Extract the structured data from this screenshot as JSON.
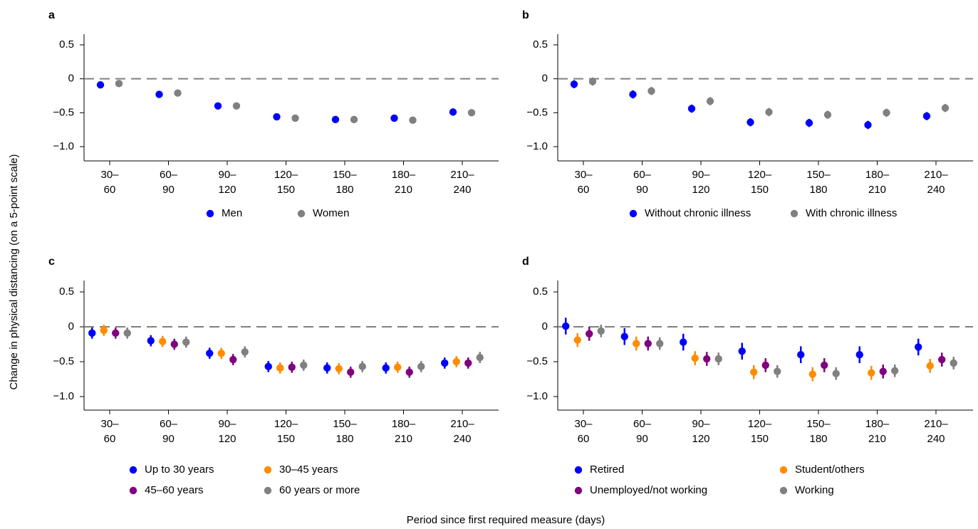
{
  "figure": {
    "ylabel": "Change in physical distancing (on a 5-point scale)",
    "xlabel": "Period since first required measure (days)"
  },
  "chart_data": [
    {
      "panel": "a",
      "type": "scatter",
      "categories": [
        [
          "30–",
          "60"
        ],
        [
          "60–",
          "90"
        ],
        [
          "90–",
          "120"
        ],
        [
          "120–",
          "150"
        ],
        [
          "150–",
          "180"
        ],
        [
          "180–",
          "210"
        ],
        [
          "210–",
          "240"
        ]
      ],
      "yticks": [
        "0.5",
        "0",
        "−0.5",
        "−1.0"
      ],
      "ylim": [
        -1.0,
        0.5
      ],
      "reference_line": 0,
      "legend_columns": 2,
      "series": [
        {
          "name": "Men",
          "color": "#0000ff",
          "values": [
            -0.09,
            -0.23,
            -0.4,
            -0.56,
            -0.6,
            -0.58,
            -0.49
          ],
          "ci": [
            0.05,
            0.05,
            0.05,
            0.05,
            0.05,
            0.05,
            0.05
          ]
        },
        {
          "name": "Women",
          "color": "#808080",
          "values": [
            -0.07,
            -0.21,
            -0.4,
            -0.58,
            -0.6,
            -0.61,
            -0.5
          ],
          "ci": [
            0.05,
            0.05,
            0.05,
            0.05,
            0.05,
            0.05,
            0.05
          ]
        }
      ]
    },
    {
      "panel": "b",
      "type": "scatter",
      "categories": [
        [
          "30–",
          "60"
        ],
        [
          "60–",
          "90"
        ],
        [
          "90–",
          "120"
        ],
        [
          "120–",
          "150"
        ],
        [
          "150–",
          "180"
        ],
        [
          "180–",
          "210"
        ],
        [
          "210–",
          "240"
        ]
      ],
      "yticks": [
        "0.5",
        "0",
        "−0.5",
        "−1.0"
      ],
      "ylim": [
        -1.0,
        0.5
      ],
      "reference_line": 0,
      "legend_columns": 2,
      "series": [
        {
          "name": "Without chronic illness",
          "color": "#0000ff",
          "values": [
            -0.08,
            -0.23,
            -0.44,
            -0.64,
            -0.65,
            -0.68,
            -0.55
          ],
          "ci": [
            0.06,
            0.06,
            0.06,
            0.06,
            0.06,
            0.06,
            0.06
          ]
        },
        {
          "name": "With chronic illness",
          "color": "#808080",
          "values": [
            -0.04,
            -0.18,
            -0.33,
            -0.49,
            -0.53,
            -0.5,
            -0.43
          ],
          "ci": [
            0.06,
            0.06,
            0.06,
            0.06,
            0.06,
            0.06,
            0.06
          ]
        }
      ]
    },
    {
      "panel": "c",
      "type": "scatter",
      "categories": [
        [
          "30–",
          "60"
        ],
        [
          "60–",
          "90"
        ],
        [
          "90–",
          "120"
        ],
        [
          "120–",
          "150"
        ],
        [
          "150–",
          "180"
        ],
        [
          "180–",
          "210"
        ],
        [
          "210–",
          "240"
        ]
      ],
      "yticks": [
        "0.5",
        "0",
        "−0.5",
        "−1.0"
      ],
      "ylim": [
        -1.0,
        0.5
      ],
      "reference_line": 0,
      "legend_columns": 2,
      "series": [
        {
          "name": "Up to 30 years",
          "color": "#0000ff",
          "values": [
            -0.09,
            -0.2,
            -0.38,
            -0.57,
            -0.59,
            -0.59,
            -0.52
          ],
          "ci": [
            0.08,
            0.08,
            0.08,
            0.08,
            0.08,
            0.08,
            0.08
          ]
        },
        {
          "name": "30–45 years",
          "color": "#ff8c00",
          "values": [
            -0.05,
            -0.21,
            -0.38,
            -0.59,
            -0.6,
            -0.58,
            -0.5
          ],
          "ci": [
            0.08,
            0.08,
            0.08,
            0.08,
            0.08,
            0.08,
            0.08
          ]
        },
        {
          "name": "45–60 years",
          "color": "#800080",
          "values": [
            -0.09,
            -0.25,
            -0.47,
            -0.58,
            -0.65,
            -0.65,
            -0.52
          ],
          "ci": [
            0.08,
            0.08,
            0.08,
            0.08,
            0.08,
            0.08,
            0.08
          ]
        },
        {
          "name": "60 years or more",
          "color": "#808080",
          "values": [
            -0.09,
            -0.22,
            -0.36,
            -0.55,
            -0.57,
            -0.57,
            -0.44
          ],
          "ci": [
            0.08,
            0.08,
            0.08,
            0.08,
            0.08,
            0.08,
            0.08
          ]
        }
      ]
    },
    {
      "panel": "d",
      "type": "scatter",
      "categories": [
        [
          "30–",
          "60"
        ],
        [
          "60–",
          "90"
        ],
        [
          "90–",
          "120"
        ],
        [
          "120–",
          "150"
        ],
        [
          "150–",
          "180"
        ],
        [
          "180–",
          "210"
        ],
        [
          "210–",
          "240"
        ]
      ],
      "yticks": [
        "0.5",
        "0",
        "−0.5",
        "−1.0"
      ],
      "ylim": [
        -1.0,
        0.5
      ],
      "reference_line": 0,
      "legend_columns": 2,
      "series": [
        {
          "name": "Retired",
          "color": "#0000ff",
          "values": [
            0.01,
            -0.14,
            -0.22,
            -0.35,
            -0.4,
            -0.4,
            -0.29
          ],
          "ci": [
            0.12,
            0.12,
            0.12,
            0.12,
            0.12,
            0.12,
            0.12
          ]
        },
        {
          "name": "Student/others",
          "color": "#ff8c00",
          "values": [
            -0.19,
            -0.24,
            -0.45,
            -0.65,
            -0.68,
            -0.66,
            -0.56
          ],
          "ci": [
            0.1,
            0.1,
            0.1,
            0.1,
            0.1,
            0.1,
            0.1
          ]
        },
        {
          "name": "Unemployed/not working",
          "color": "#800080",
          "values": [
            -0.1,
            -0.24,
            -0.46,
            -0.55,
            -0.55,
            -0.64,
            -0.47
          ],
          "ci": [
            0.1,
            0.1,
            0.1,
            0.1,
            0.1,
            0.1,
            0.1
          ]
        },
        {
          "name": "Working",
          "color": "#808080",
          "values": [
            -0.06,
            -0.24,
            -0.46,
            -0.64,
            -0.67,
            -0.63,
            -0.52
          ],
          "ci": [
            0.09,
            0.09,
            0.09,
            0.09,
            0.09,
            0.09,
            0.09
          ]
        }
      ]
    }
  ]
}
